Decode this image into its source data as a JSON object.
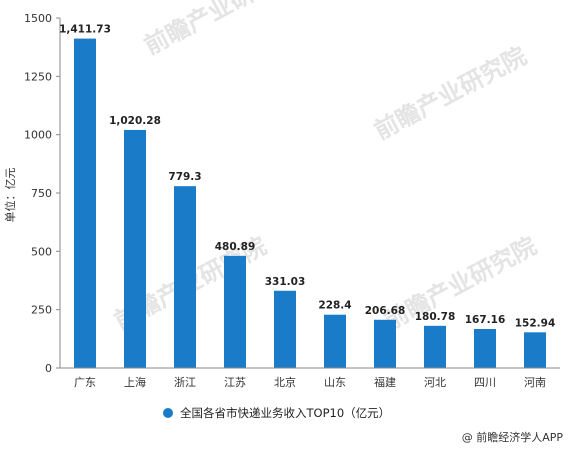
{
  "chart_data": {
    "type": "bar",
    "categories": [
      "广东",
      "上海",
      "浙江",
      "江苏",
      "北京",
      "山东",
      "福建",
      "河北",
      "四川",
      "河南"
    ],
    "series": [
      {
        "name": "全国各省市快递业务收入TOP10（亿元）",
        "values": [
          1411.73,
          1020.28,
          779.3,
          480.89,
          331.03,
          228.4,
          206.68,
          180.78,
          167.16,
          152.94
        ],
        "labels": [
          "1,411.73",
          "1,020.28",
          "779.3",
          "480.89",
          "331.03",
          "228.4",
          "206.68",
          "180.78",
          "167.16",
          "152.94"
        ],
        "color": "#1a7bc9"
      }
    ],
    "ylabel": "单位：亿元",
    "ylim": [
      0,
      1500
    ],
    "yticks": [
      0,
      250,
      500,
      750,
      1000,
      1250,
      1500
    ],
    "grid": false,
    "legend_position": "bottom"
  },
  "watermark": "前瞻产业研究院",
  "source": "@ 前瞻经济学人APP"
}
